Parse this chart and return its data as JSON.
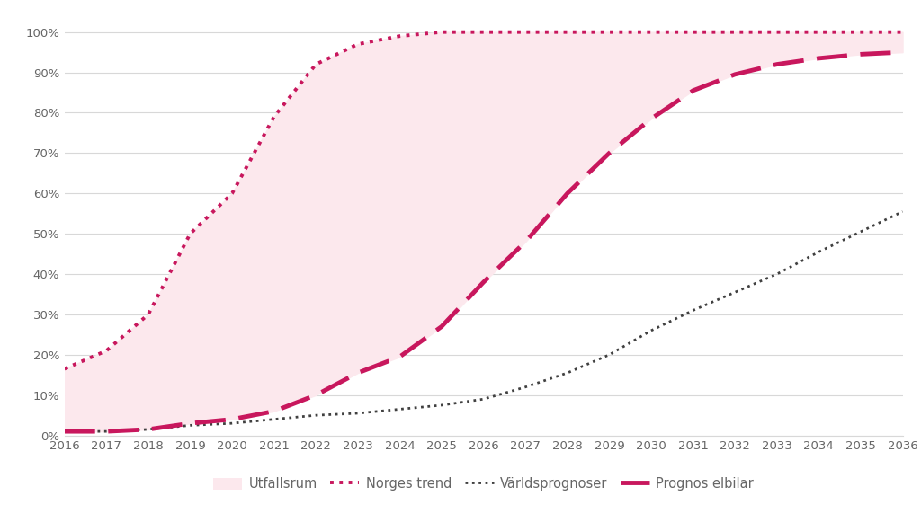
{
  "years": [
    2016,
    2017,
    2018,
    2019,
    2020,
    2021,
    2022,
    2023,
    2024,
    2025,
    2026,
    2027,
    2028,
    2029,
    2030,
    2031,
    2032,
    2033,
    2034,
    2035,
    2036
  ],
  "norges_trend": [
    0.165,
    0.21,
    0.3,
    0.5,
    0.6,
    0.79,
    0.92,
    0.97,
    0.99,
    1.0,
    1.0,
    1.0,
    1.0,
    1.0,
    1.0,
    1.0,
    1.0,
    1.0,
    1.0,
    1.0,
    1.0
  ],
  "varldsprognoser": [
    0.01,
    0.01,
    0.015,
    0.025,
    0.03,
    0.04,
    0.05,
    0.055,
    0.065,
    0.075,
    0.09,
    0.12,
    0.155,
    0.2,
    0.26,
    0.31,
    0.355,
    0.4,
    0.455,
    0.505,
    0.555
  ],
  "prognos_elbilar": [
    0.01,
    0.01,
    0.015,
    0.03,
    0.04,
    0.06,
    0.1,
    0.155,
    0.195,
    0.27,
    0.38,
    0.48,
    0.6,
    0.7,
    0.785,
    0.855,
    0.895,
    0.92,
    0.935,
    0.945,
    0.95
  ],
  "fill_upper": [
    0.165,
    0.21,
    0.3,
    0.5,
    0.6,
    0.79,
    0.92,
    0.97,
    0.99,
    1.0,
    1.0,
    1.0,
    1.0,
    1.0,
    1.0,
    1.0,
    1.0,
    1.0,
    1.0,
    1.0,
    1.0
  ],
  "fill_lower": [
    0.01,
    0.01,
    0.015,
    0.03,
    0.04,
    0.06,
    0.1,
    0.155,
    0.195,
    0.27,
    0.38,
    0.48,
    0.6,
    0.7,
    0.785,
    0.855,
    0.895,
    0.92,
    0.935,
    0.945,
    0.95
  ],
  "norges_color": "#c8175d",
  "varlds_color": "#404040",
  "prognos_color": "#c8175d",
  "fill_color": "#fce8ed",
  "background_color": "#ffffff",
  "grid_color": "#d8d8d8",
  "text_color": "#666666",
  "legend_labels": [
    "Utfallsrum",
    "Norges trend",
    "Världsprognoser",
    "Prognos elbilar"
  ],
  "ylim": [
    0,
    1.04
  ],
  "yticks": [
    0,
    0.1,
    0.2,
    0.3,
    0.4,
    0.5,
    0.6,
    0.7,
    0.8,
    0.9,
    1.0
  ],
  "ytick_labels": [
    "0%",
    "10%",
    "20%",
    "30%",
    "40%",
    "50%",
    "60%",
    "70%",
    "80%",
    "90%",
    "100%"
  ]
}
